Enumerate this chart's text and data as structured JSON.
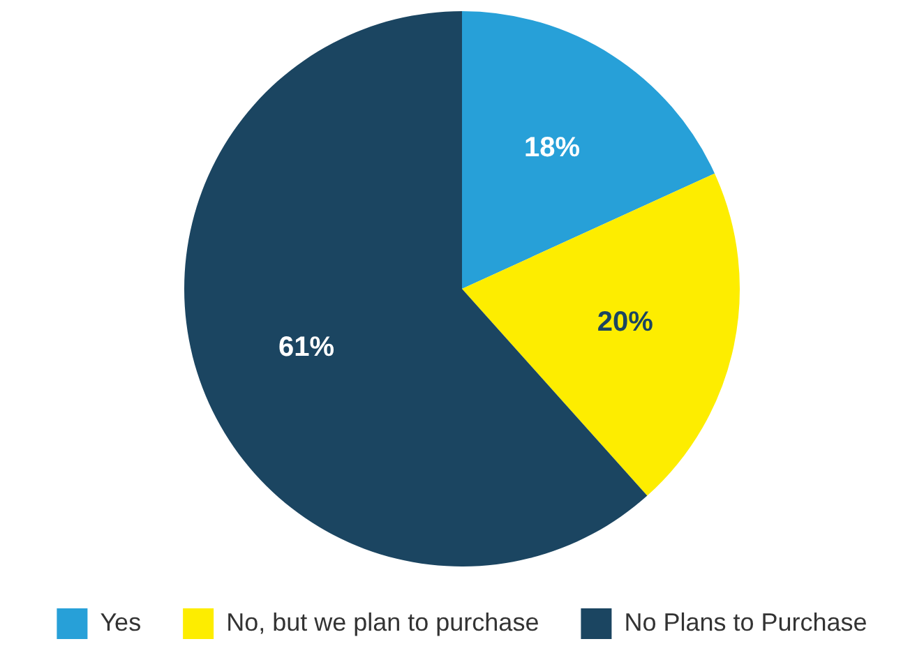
{
  "chart_data": {
    "type": "pie",
    "categories": [
      "Yes",
      "No, but we plan to purchase",
      "No Plans to Purchase"
    ],
    "values": [
      18,
      20,
      61
    ],
    "colors": [
      "#27a0d8",
      "#fded00",
      "#1b4561"
    ],
    "value_labels": [
      "18%",
      "20%",
      "61%"
    ],
    "legend": "bottom"
  }
}
